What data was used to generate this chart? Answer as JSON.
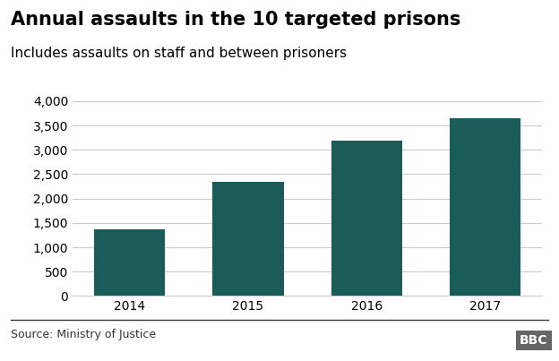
{
  "title": "Annual assaults in the 10 targeted prisons",
  "subtitle": "Includes assaults on staff and between prisoners",
  "categories": [
    "2014",
    "2015",
    "2016",
    "2017"
  ],
  "values": [
    1360,
    2350,
    3180,
    3650
  ],
  "bar_color": "#1a5c5a",
  "background_color": "#ffffff",
  "ylim": [
    0,
    4000
  ],
  "yticks": [
    0,
    500,
    1000,
    1500,
    2000,
    2500,
    3000,
    3500,
    4000
  ],
  "source_text": "Source: Ministry of Justice",
  "bbc_text": "BBC",
  "title_fontsize": 15,
  "subtitle_fontsize": 11,
  "tick_fontsize": 10,
  "source_fontsize": 9,
  "bbc_fontsize": 10
}
